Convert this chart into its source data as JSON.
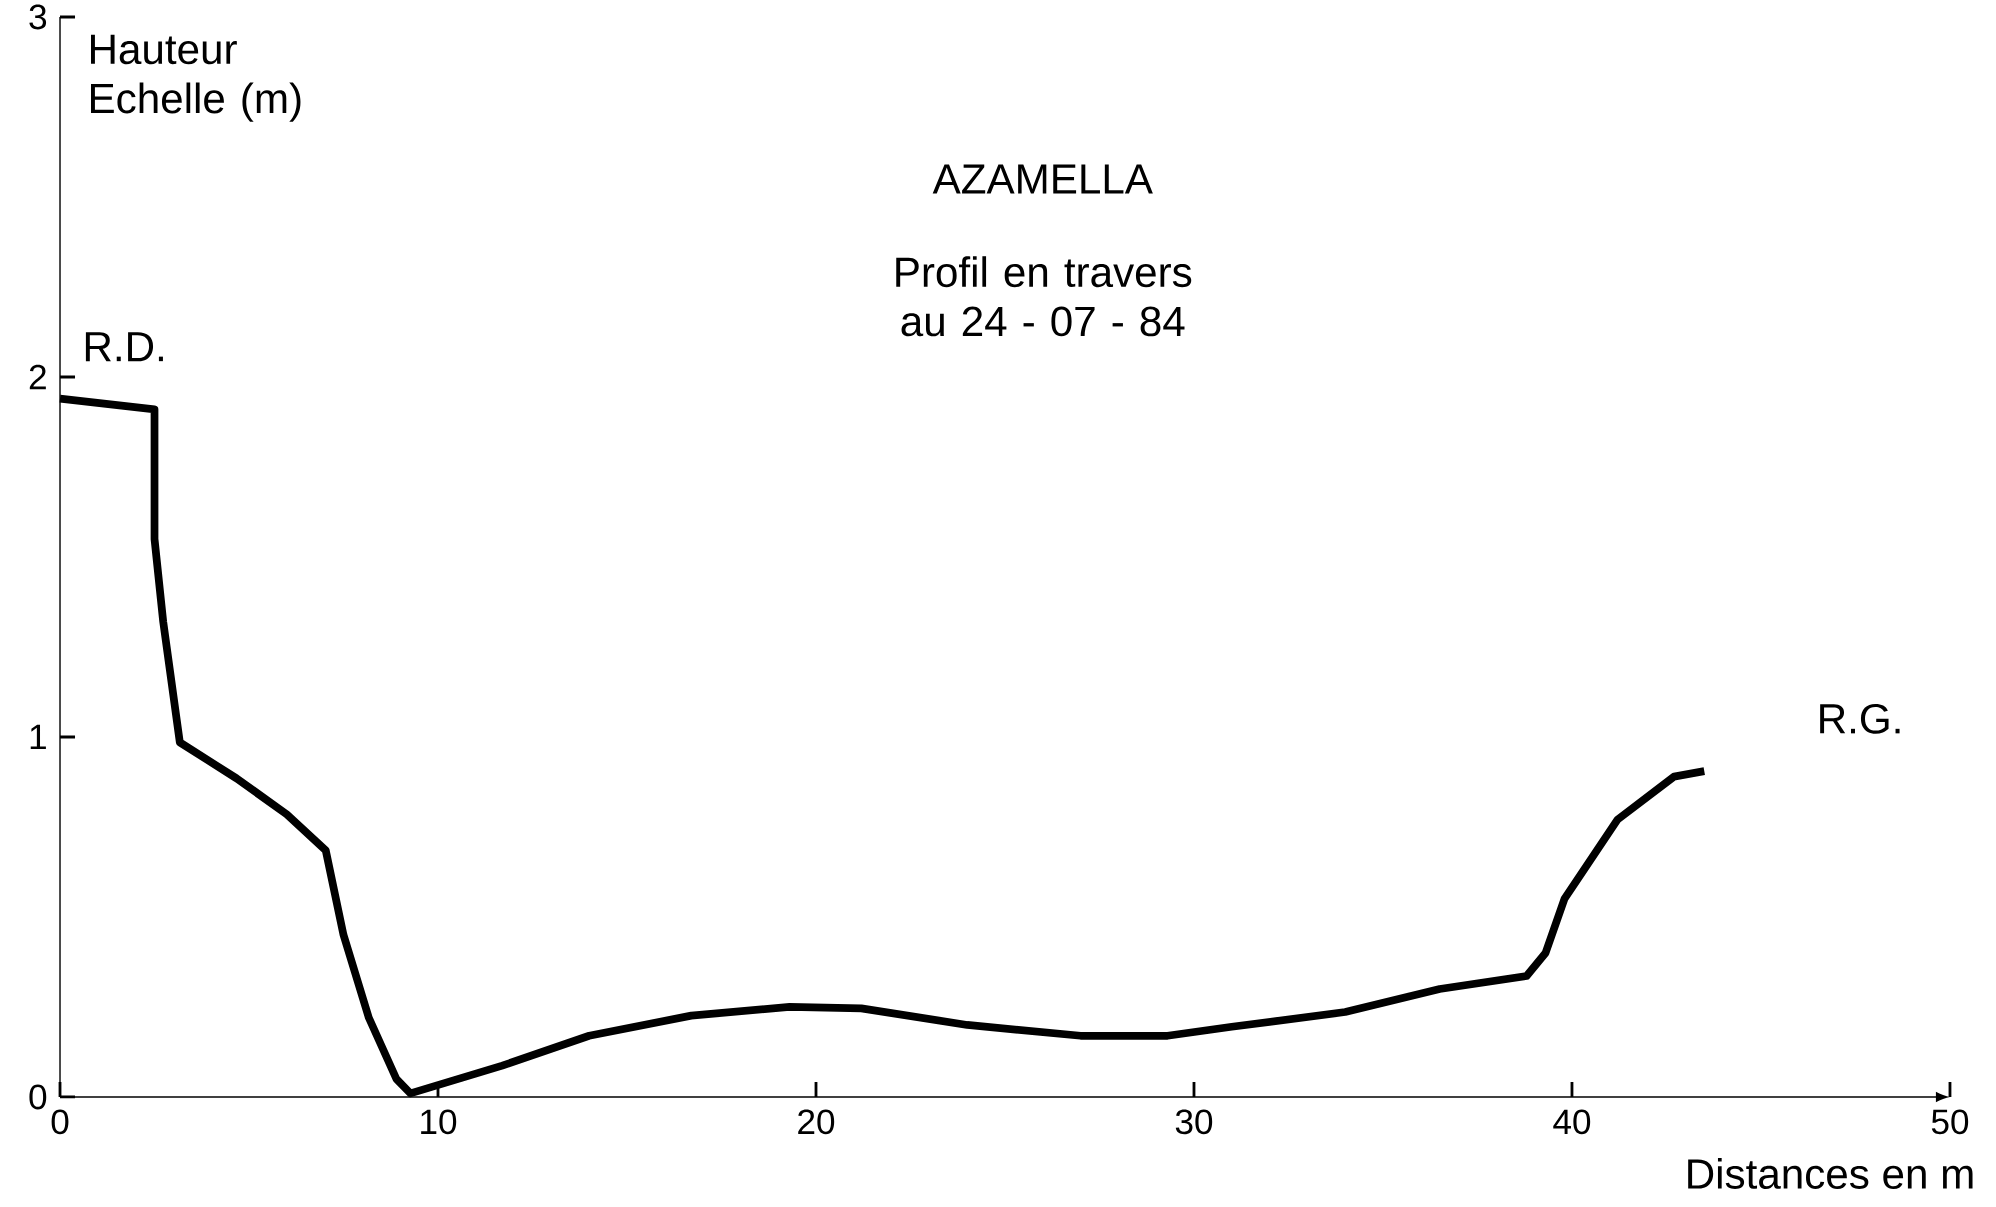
{
  "chart_data": {
    "type": "line",
    "title": "AZAMELLA",
    "subtitle": "Profil en travers au 24 - 07 - 84",
    "xlabel": "Distances en m",
    "ylabel": "Hauteur Echelle (m)",
    "x": [
      0,
      2.5,
      2.5,
      2.73,
      3.17,
      4.67,
      6,
      7.03,
      7.5,
      8.17,
      8.9,
      9.27,
      11.7,
      14,
      16.7,
      19.3,
      21.2,
      24,
      27,
      29.3,
      31,
      34,
      36.5,
      38.8,
      39.3,
      39.8,
      41.2,
      42.7,
      43.5
    ],
    "series": [
      {
        "color": "#000000",
        "values": [
          1.94,
          1.91,
          1.55,
          1.32,
          0.985,
          0.885,
          0.785,
          0.685,
          0.45,
          0.22,
          0.05,
          0.01,
          0.087,
          0.17,
          0.226,
          0.25,
          0.246,
          0.2,
          0.17,
          0.17,
          0.195,
          0.236,
          0.3,
          0.336,
          0.4,
          0.55,
          0.77,
          0.89,
          0.905
        ]
      }
    ],
    "xlim": [
      0,
      50
    ],
    "ylim": [
      0,
      3
    ],
    "xticks": [
      0,
      10,
      20,
      30,
      40,
      50
    ],
    "yticks": [
      0,
      1,
      2,
      3
    ],
    "grid": false,
    "line_style": "solid",
    "marker": "none",
    "annotations": [
      {
        "text": "R.D.",
        "x": 0,
        "y": 1.94
      },
      {
        "text": "R.G.",
        "x": 43.5,
        "y": 0.905
      }
    ]
  }
}
